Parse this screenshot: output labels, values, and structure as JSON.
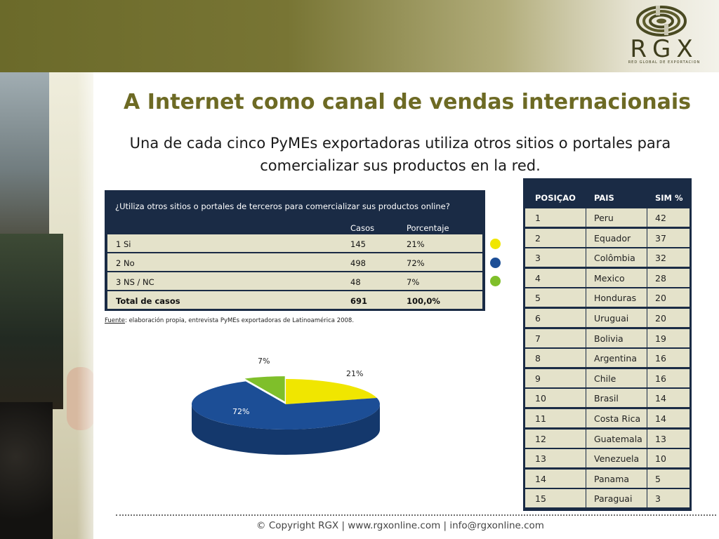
{
  "logo": {
    "text": "RGX",
    "tagline": "RED GLOBAL DE EXPORTACION"
  },
  "title": "A Internet como canal de vendas internacionais",
  "subtitle_line1": "Una de cada cinco PyMEs exportadoras utiliza otros sitios o portales para",
  "subtitle_line2": "comercializar sus productos en la red.",
  "survey": {
    "question": "¿Utiliza otros sitios o portales de terceros para comercializar sus productos online?",
    "col_casos": "Casos",
    "col_porcentaje": "Porcentaje",
    "rows": [
      {
        "label": "1  Si",
        "casos": "145",
        "porcentaje": "21%"
      },
      {
        "label": "2  No",
        "casos": "498",
        "porcentaje": "72%"
      },
      {
        "label": "3  NS / NC",
        "casos": "48",
        "porcentaje": "7%"
      }
    ],
    "total": {
      "label": "Total de casos",
      "casos": "691",
      "porcentaje": "100,0%"
    }
  },
  "fuente_label": "Fuente",
  "fuente_text": ": elaboración propia, entrevista PyMEs exportadoras de Latinoamérica 2008.",
  "legend_colors": [
    "#f0e600",
    "#1c4e96",
    "#7fbf2a"
  ],
  "ranking": {
    "headers": [
      "POSIÇAO",
      "PAIS",
      "SIM %"
    ],
    "rows": [
      [
        "1",
        "Peru",
        "42"
      ],
      [
        "2",
        "Equador",
        "37"
      ],
      [
        "3",
        "Colômbia",
        "32"
      ],
      [
        "4",
        "Mexico",
        "28"
      ],
      [
        "5",
        "Honduras",
        "20"
      ],
      [
        "6",
        "Uruguai",
        "20"
      ],
      [
        "7",
        "Bolivia",
        "19"
      ],
      [
        "8",
        "Argentina",
        "16"
      ],
      [
        "9",
        "Chile",
        "16"
      ],
      [
        "10",
        "Brasil",
        "14"
      ],
      [
        "11",
        "Costa Rica",
        "14"
      ],
      [
        "12",
        "Guatemala",
        "13"
      ],
      [
        "13",
        "Venezuela",
        "10"
      ],
      [
        "14",
        "Panama",
        "5"
      ],
      [
        "15",
        "Paraguai",
        "3"
      ]
    ]
  },
  "chart_data": {
    "type": "pie",
    "categories": [
      "Si",
      "No",
      "NS / NC"
    ],
    "values": [
      21,
      72,
      7
    ],
    "labels": [
      "21%",
      "72%",
      "7%"
    ],
    "colors": [
      "#f0e600",
      "#1c4e96",
      "#7fbf2a"
    ]
  },
  "footer": "© Copyright RGX | www.rgxonline.com | info@rgxonline.com"
}
